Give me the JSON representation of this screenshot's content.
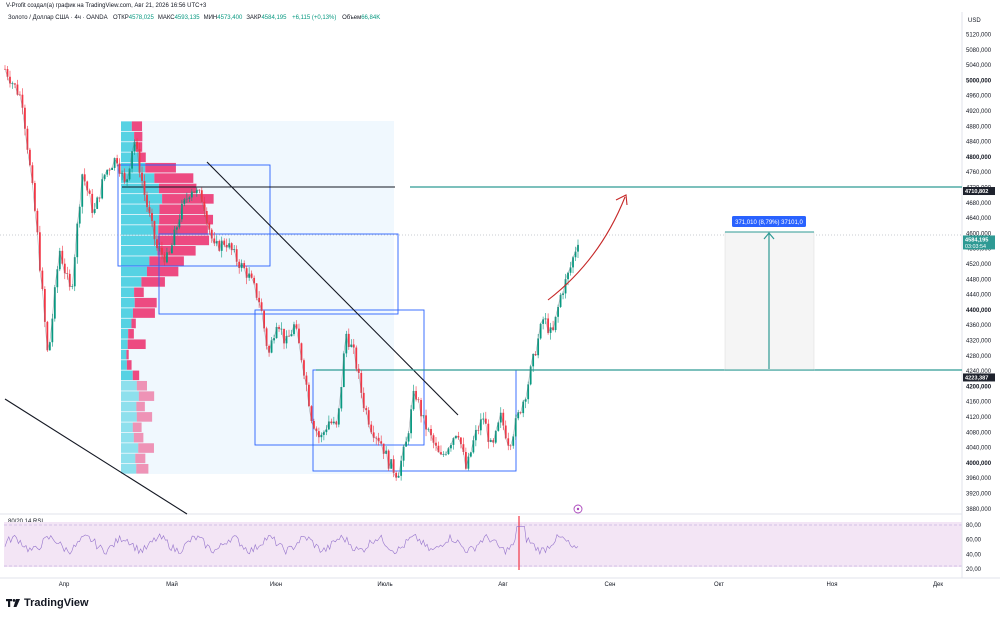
{
  "header": {
    "author_line": "V-Profit создал(а) график на TradingView.com, Авг 21, 2026 16:56 UTC+3",
    "symbol": "Золото / Доллар США · 4ч · OANDA",
    "ohlc": [
      {
        "key": "ОТКР",
        "value": "4578,025"
      },
      {
        "key": "МАКС",
        "value": "4593,135"
      },
      {
        "key": "МИН",
        "value": "4573,400"
      },
      {
        "key": "ЗАКР",
        "value": "4584,195"
      }
    ],
    "change": "+6,115 (+0,13%)",
    "volume_label": "Объем",
    "volume_value": "66,84K"
  },
  "colors": {
    "up": "#089981",
    "down": "#f23645",
    "teal_line": "#2e9a94",
    "box": "#2962ff",
    "vp_up": "#4dd0e1",
    "vp_down": "#ec407a",
    "arrow": "#c62828",
    "rsi_fill": "#f3e5f5",
    "rsi_line": "#7e57c2"
  },
  "chart_data": {
    "type": "candlestick",
    "price_axis": {
      "currency": "USD",
      "range": [
        3860,
        5160
      ],
      "ticks": [
        "5120,000",
        "5080,000",
        "5040,000",
        "5000,000",
        "4960,000",
        "4920,000",
        "4880,000",
        "4840,000",
        "4800,000",
        "4760,000",
        "4720,000",
        "4680,000",
        "4640,000",
        "4600,000",
        "4560,000",
        "4520,000",
        "4480,000",
        "4440,000",
        "4400,000",
        "4360,000",
        "4320,000",
        "4280,000",
        "4240,000",
        "4200,000",
        "4160,000",
        "4120,000",
        "4080,000",
        "4040,000",
        "4000,000",
        "3960,000",
        "3920,000",
        "3880,000"
      ],
      "bold_ticks": [
        "5000,000",
        "4800,000",
        "4400,000",
        "4200,000",
        "4000,000"
      ]
    },
    "time_axis": [
      "Апр",
      "Май",
      "Июн",
      "Июль",
      "Авг",
      "Сен",
      "Окт",
      "Ноя",
      "Дек"
    ],
    "price_tags": [
      {
        "label": "4710,802",
        "value": 4710.802,
        "type": "dark"
      },
      {
        "label": "4584,195",
        "sublabel": "03:03:54",
        "value": 4584.195,
        "type": "current"
      },
      {
        "label": "4223,387",
        "value": 4223.387,
        "type": "dark"
      }
    ],
    "horizontal_levels": [
      4710.802,
      4223.387
    ],
    "measure_label": "371,010 (8,79%) 37101,0",
    "rsi": {
      "label": "80/20 14 RSI",
      "ticks": [
        "80,00",
        "60,00",
        "40,00",
        "20,00"
      ],
      "range": [
        20,
        80
      ]
    },
    "price_path": [
      [
        0.0,
        5030
      ],
      [
        0.03,
        4950
      ],
      [
        0.055,
        4620
      ],
      [
        0.075,
        4270
      ],
      [
        0.095,
        4560
      ],
      [
        0.115,
        4440
      ],
      [
        0.135,
        4760
      ],
      [
        0.155,
        4650
      ],
      [
        0.175,
        4760
      ],
      [
        0.195,
        4800
      ],
      [
        0.21,
        4720
      ],
      [
        0.225,
        4850
      ],
      [
        0.245,
        4690
      ],
      [
        0.265,
        4560
      ],
      [
        0.285,
        4530
      ],
      [
        0.305,
        4650
      ],
      [
        0.325,
        4720
      ],
      [
        0.345,
        4690
      ],
      [
        0.365,
        4560
      ],
      [
        0.385,
        4580
      ],
      [
        0.405,
        4530
      ],
      [
        0.425,
        4490
      ],
      [
        0.445,
        4420
      ],
      [
        0.46,
        4280
      ],
      [
        0.475,
        4380
      ],
      [
        0.49,
        4310
      ],
      [
        0.505,
        4360
      ],
      [
        0.52,
        4260
      ],
      [
        0.535,
        4120
      ],
      [
        0.55,
        4060
      ],
      [
        0.565,
        4110
      ],
      [
        0.58,
        4090
      ],
      [
        0.595,
        4340
      ],
      [
        0.61,
        4280
      ],
      [
        0.625,
        4160
      ],
      [
        0.64,
        4090
      ],
      [
        0.655,
        4060
      ],
      [
        0.67,
        4000
      ],
      [
        0.685,
        3970
      ],
      [
        0.7,
        4050
      ],
      [
        0.715,
        4190
      ],
      [
        0.73,
        4110
      ],
      [
        0.745,
        4060
      ],
      [
        0.76,
        4010
      ],
      [
        0.775,
        4050
      ],
      [
        0.79,
        4090
      ],
      [
        0.805,
        3980
      ],
      [
        0.82,
        4070
      ],
      [
        0.835,
        4120
      ],
      [
        0.85,
        4030
      ],
      [
        0.865,
        4120
      ],
      [
        0.88,
        4050
      ],
      [
        0.895,
        4120
      ],
      [
        0.91,
        4190
      ],
      [
        0.925,
        4290
      ],
      [
        0.94,
        4380
      ],
      [
        0.955,
        4330
      ],
      [
        0.97,
        4440
      ],
      [
        0.985,
        4500
      ],
      [
        1.0,
        4584
      ]
    ]
  },
  "branding": {
    "name": "TradingView",
    "logo_glyph": "17"
  }
}
